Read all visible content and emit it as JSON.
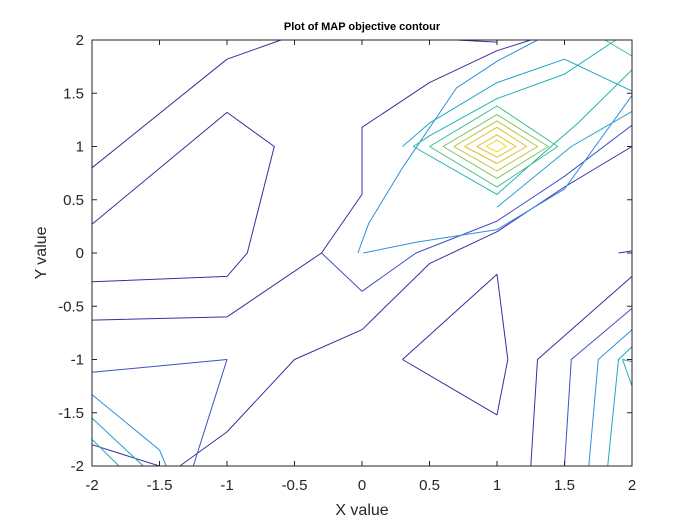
{
  "chart_data": {
    "type": "contour",
    "title": "Plot of MAP objective contour",
    "xlabel": "X value",
    "ylabel": "Y value",
    "xlim": [
      -2,
      2
    ],
    "ylim": [
      -2,
      2
    ],
    "xticks": [
      "-2",
      "-1.5",
      "-1",
      "-0.5",
      "0",
      "0.5",
      "1",
      "1.5",
      "2"
    ],
    "yticks": [
      "2",
      "1.5",
      "1",
      "0.5",
      "0",
      "-0.5",
      "-1",
      "-1.5",
      "-2"
    ],
    "xtick_values": [
      -2,
      -1.5,
      -1,
      -0.5,
      0,
      0.5,
      1,
      1.5,
      2
    ],
    "ytick_values": [
      2,
      1.5,
      1,
      0.5,
      0,
      -0.5,
      -1,
      -1.5,
      -2
    ],
    "grid": false,
    "peak": {
      "x": 1,
      "y": 1
    },
    "colors": {
      "level1": "#3b2d9c",
      "level2": "#3f4fc4",
      "level3": "#2f8fe0",
      "level4": "#1fa6c7",
      "level5": "#20b3b0",
      "level6": "#3cbd8f",
      "level7": "#7cc45c",
      "level8": "#b8c43a",
      "level9": "#dfc02c",
      "level10": "#f3d728"
    },
    "contours": [
      {
        "level": "level1",
        "points": [
          [
            -2,
            0.8
          ],
          [
            -1,
            1.82
          ],
          [
            -0.6,
            2
          ]
        ]
      },
      {
        "level": "level1",
        "points": [
          [
            -2,
            0.27
          ],
          [
            -1,
            1.32
          ],
          [
            -0.65,
            1
          ],
          [
            -0.85,
            0
          ],
          [
            -1,
            -0.22
          ],
          [
            -2,
            -0.27
          ]
        ]
      },
      {
        "level": "level1",
        "points": [
          [
            0.7,
            2
          ],
          [
            1,
            1.98
          ]
        ]
      },
      {
        "level": "level1",
        "points": [
          [
            -2,
            -0.63
          ],
          [
            -1,
            -0.6
          ],
          [
            -0.3,
            0
          ],
          [
            0,
            0.55
          ],
          [
            0,
            1.18
          ],
          [
            0.5,
            1.6
          ],
          [
            1,
            1.9
          ],
          [
            1.25,
            2
          ]
        ]
      },
      {
        "level": "level1",
        "points": [
          [
            -2,
            -1.8
          ],
          [
            -1.5,
            -2
          ]
        ]
      },
      {
        "level": "level1",
        "points": [
          [
            -1.35,
            -2
          ],
          [
            -1,
            -1.68
          ],
          [
            -0.5,
            -1
          ],
          [
            0,
            -0.72
          ],
          [
            0.5,
            -0.1
          ],
          [
            1,
            0.2
          ],
          [
            1.5,
            0.62
          ],
          [
            2,
            1
          ]
        ]
      },
      {
        "level": "level1",
        "points": [
          [
            1.25,
            -2
          ],
          [
            1.3,
            -1
          ],
          [
            2,
            -0.22
          ]
        ]
      },
      {
        "level": "level1",
        "points": [
          [
            1.9,
            0
          ],
          [
            2,
            0.02
          ]
        ]
      },
      {
        "level": "level1",
        "points": [
          [
            0.3,
            -1
          ],
          [
            1,
            -0.2
          ],
          [
            1.08,
            -1
          ],
          [
            1,
            -1.52
          ],
          [
            0.3,
            -1
          ]
        ]
      },
      {
        "level": "level2",
        "points": [
          [
            -2,
            -1.12
          ],
          [
            -1,
            -1
          ],
          [
            -1.25,
            -2
          ]
        ]
      },
      {
        "level": "level2",
        "points": [
          [
            1.5,
            -2
          ],
          [
            1.55,
            -1
          ],
          [
            2,
            -0.52
          ]
        ]
      },
      {
        "level": "level2",
        "points": [
          [
            -0.3,
            0
          ],
          [
            0,
            -0.36
          ],
          [
            0.4,
            0
          ],
          [
            1,
            0.3
          ],
          [
            1.5,
            0.72
          ],
          [
            2,
            1.2
          ]
        ]
      },
      {
        "level": "level3",
        "points": [
          [
            -2,
            -1.33
          ],
          [
            -1.5,
            -1.85
          ],
          [
            -1.45,
            -2
          ]
        ]
      },
      {
        "level": "level3",
        "points": [
          [
            -0.03,
            0
          ],
          [
            0.05,
            0.28
          ],
          [
            0.3,
            0.8
          ],
          [
            0.7,
            1.55
          ],
          [
            1,
            1.8
          ],
          [
            1.3,
            2
          ]
        ]
      },
      {
        "level": "level3",
        "points": [
          [
            0.01,
            0
          ],
          [
            0.4,
            0.1
          ],
          [
            1,
            0.22
          ],
          [
            1.5,
            0.6
          ],
          [
            2,
            1.48
          ]
        ]
      },
      {
        "level": "level3",
        "points": [
          [
            1.68,
            -2
          ],
          [
            1.75,
            -1
          ],
          [
            2,
            -0.72
          ]
        ]
      },
      {
        "level": "level4",
        "points": [
          [
            -2,
            -1.55
          ],
          [
            -1.62,
            -2
          ]
        ]
      },
      {
        "level": "level4",
        "points": [
          [
            1.82,
            -2
          ],
          [
            1.9,
            -1
          ],
          [
            2,
            -0.88
          ]
        ]
      },
      {
        "level": "level4",
        "points": [
          [
            0.3,
            1
          ],
          [
            0.5,
            1.22
          ],
          [
            1,
            1.6
          ],
          [
            1.5,
            1.82
          ],
          [
            2,
            1.52
          ]
        ]
      },
      {
        "level": "level4",
        "points": [
          [
            1,
            0.43
          ],
          [
            1.55,
            1
          ],
          [
            2,
            1.33
          ]
        ]
      },
      {
        "level": "level5",
        "points": [
          [
            -2,
            -1.75
          ],
          [
            -1.8,
            -2
          ]
        ]
      },
      {
        "level": "level5",
        "points": [
          [
            2,
            -1.02
          ],
          [
            1.93,
            -1
          ],
          [
            2,
            -1.25
          ]
        ]
      },
      {
        "level": "level5",
        "points": [
          [
            0.38,
            1
          ],
          [
            0.5,
            1.1
          ],
          [
            1,
            1.45
          ],
          [
            1.5,
            1.68
          ],
          [
            1.88,
            2
          ]
        ]
      },
      {
        "level": "level5",
        "points": [
          [
            0.38,
            1
          ],
          [
            1,
            0.55
          ],
          [
            1.4,
            1
          ],
          [
            1.6,
            1.22
          ],
          [
            2,
            1.72
          ]
        ]
      },
      {
        "level": "level6",
        "points": [
          [
            0.5,
            1
          ],
          [
            1,
            1.38
          ],
          [
            1.45,
            1
          ],
          [
            1,
            0.62
          ],
          [
            0.5,
            1
          ]
        ]
      },
      {
        "level": "level6",
        "points": [
          [
            1.8,
            2
          ],
          [
            2,
            1.85
          ]
        ]
      },
      {
        "level": "level7",
        "points": [
          [
            0.6,
            1
          ],
          [
            1,
            1.3
          ],
          [
            1.38,
            1
          ],
          [
            1,
            0.7
          ],
          [
            0.6,
            1
          ]
        ]
      },
      {
        "level": "level8",
        "points": [
          [
            0.68,
            1
          ],
          [
            1,
            1.24
          ],
          [
            1.3,
            1
          ],
          [
            1,
            0.77
          ],
          [
            0.68,
            1
          ]
        ]
      },
      {
        "level": "level9",
        "points": [
          [
            0.76,
            1
          ],
          [
            1,
            1.18
          ],
          [
            1.22,
            1
          ],
          [
            1,
            0.84
          ],
          [
            0.76,
            1
          ]
        ]
      },
      {
        "level": "level9",
        "points": [
          [
            0.85,
            1
          ],
          [
            1,
            1.11
          ],
          [
            1.14,
            1
          ],
          [
            1,
            0.9
          ],
          [
            0.85,
            1
          ]
        ]
      },
      {
        "level": "level10",
        "points": [
          [
            0.92,
            1
          ],
          [
            1,
            1.06
          ],
          [
            1.07,
            1
          ],
          [
            1,
            0.95
          ],
          [
            0.92,
            1
          ]
        ]
      }
    ]
  }
}
